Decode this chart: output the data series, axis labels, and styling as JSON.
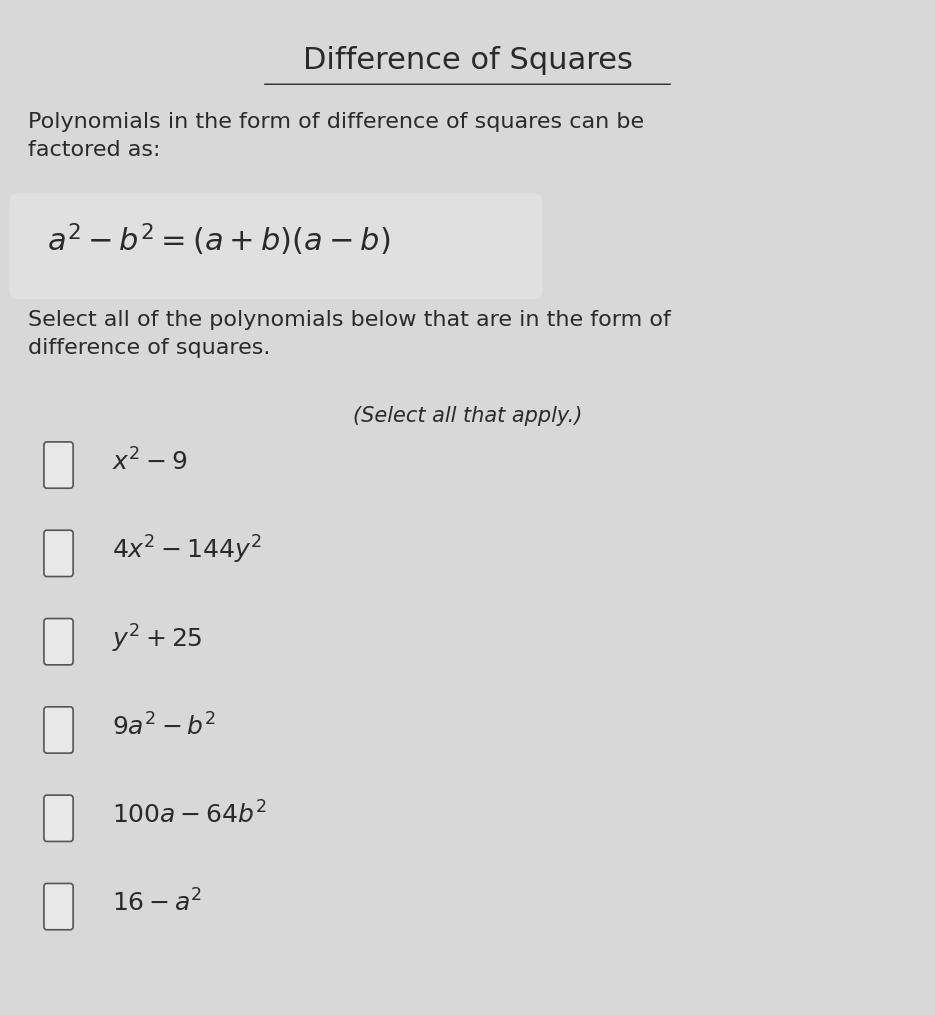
{
  "title": "Difference of Squares",
  "subtitle": "Polynomials in the form of difference of squares can be\nfactored as:",
  "formula": "$a^2 - b^2 = (a+b)(a-b)$",
  "instruction": "Select all of the polynomials below that are in the form of\ndifference of squares.",
  "select_note": "(Select all that apply.)",
  "options": [
    "$x^2 - 9$",
    "$4x^2 - 144y^2$",
    "$y^2 + 25$",
    "$9a^2 - b^2$",
    "$100a - 64b^2$",
    "$16 - a^2$"
  ],
  "background_color": "#d8d8d8",
  "text_color": "#2a2a2a",
  "title_fontsize": 22,
  "body_fontsize": 16,
  "formula_fontsize": 22,
  "option_fontsize": 18,
  "checkbox_size": 0.018,
  "fig_width": 9.35,
  "fig_height": 10.15
}
